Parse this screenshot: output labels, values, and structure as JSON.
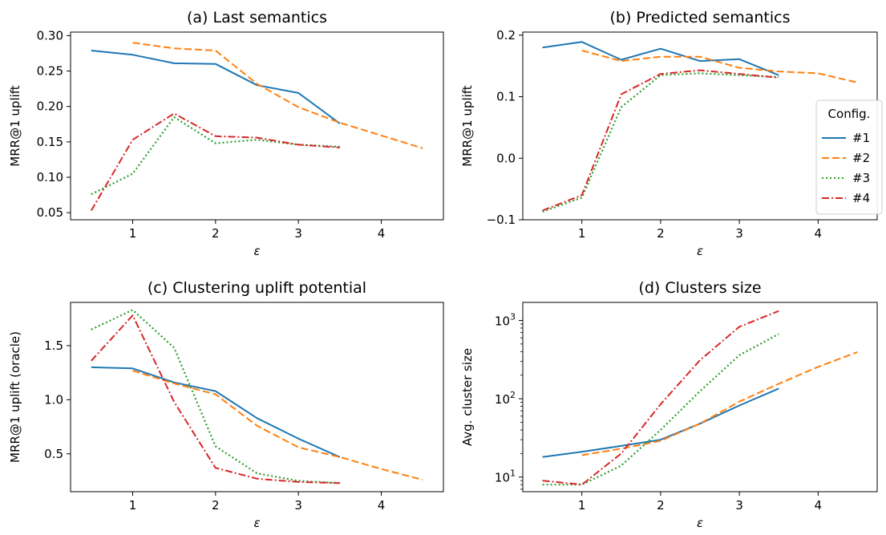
{
  "colors": {
    "s1": "#1f77b4",
    "s2": "#ff7f0e",
    "s3": "#2ca02c",
    "s4": "#d62728"
  },
  "legend": {
    "title": "Config.",
    "entries": [
      "#1",
      "#2",
      "#3",
      "#4"
    ],
    "placement": "center-right of panel (b)"
  },
  "chart_data": [
    {
      "type": "line",
      "title": "(a) Last semantics",
      "xlabel": "ε",
      "ylabel": "MRR@1 uplift",
      "xlim": [
        0.25,
        4.75
      ],
      "ylim": [
        0.04,
        0.305
      ],
      "yscale": "linear",
      "xticks": [
        "1",
        "2",
        "3",
        "4"
      ],
      "yticks": [
        "0.05",
        "0.10",
        "0.15",
        "0.20",
        "0.25",
        "0.30"
      ],
      "grid": false,
      "series": [
        {
          "name": "#1",
          "style": "solid",
          "x": [
            0.5,
            1,
            1.5,
            2,
            2.5,
            3,
            3.5
          ],
          "y": [
            0.279,
            0.273,
            0.261,
            0.26,
            0.23,
            0.219,
            0.176
          ]
        },
        {
          "name": "#2",
          "style": "dashed",
          "x": [
            1,
            1.5,
            2,
            2.5,
            3,
            3.5,
            4,
            4.5
          ],
          "y": [
            0.29,
            0.282,
            0.279,
            0.232,
            0.199,
            0.177,
            0.159,
            0.141
          ]
        },
        {
          "name": "#3",
          "style": "dotted",
          "x": [
            0.5,
            1,
            1.5,
            2,
            2.5,
            3,
            3.5
          ],
          "y": [
            0.076,
            0.105,
            0.185,
            0.148,
            0.153,
            0.146,
            0.143
          ]
        },
        {
          "name": "#4",
          "style": "dashdot",
          "x": [
            0.5,
            1,
            1.5,
            2,
            2.5,
            3,
            3.5
          ],
          "y": [
            0.053,
            0.153,
            0.19,
            0.158,
            0.156,
            0.146,
            0.142
          ]
        }
      ]
    },
    {
      "type": "line",
      "title": "(b) Predicted semantics",
      "xlabel": "ε",
      "ylabel": "MRR@1 uplift",
      "xlim": [
        0.25,
        4.75
      ],
      "ylim": [
        -0.1,
        0.205
      ],
      "yscale": "linear",
      "xticks": [
        "1",
        "2",
        "3",
        "4"
      ],
      "yticks": [
        "−0.1",
        "0.0",
        "0.1",
        "0.2"
      ],
      "grid": false,
      "series": [
        {
          "name": "#1",
          "style": "solid",
          "x": [
            0.5,
            1,
            1.5,
            2,
            2.5,
            3,
            3.5
          ],
          "y": [
            0.18,
            0.189,
            0.16,
            0.178,
            0.158,
            0.161,
            0.135
          ]
        },
        {
          "name": "#2",
          "style": "dashed",
          "x": [
            1,
            1.5,
            2,
            2.5,
            3,
            3.5,
            4,
            4.5
          ],
          "y": [
            0.175,
            0.158,
            0.165,
            0.165,
            0.147,
            0.141,
            0.138,
            0.123
          ]
        },
        {
          "name": "#3",
          "style": "dotted",
          "x": [
            0.5,
            1,
            1.5,
            2,
            2.5,
            3,
            3.5
          ],
          "y": [
            -0.087,
            -0.064,
            0.083,
            0.135,
            0.138,
            0.135,
            0.132
          ]
        },
        {
          "name": "#4",
          "style": "dashdot",
          "x": [
            0.5,
            1,
            1.5,
            2,
            2.5,
            3,
            3.5
          ],
          "y": [
            -0.085,
            -0.06,
            0.104,
            0.137,
            0.143,
            0.137,
            0.131
          ]
        }
      ]
    },
    {
      "type": "line",
      "title": "(c) Clustering uplift potential",
      "xlabel": "ε",
      "ylabel": "MRR@1 uplift (oracle)",
      "xlim": [
        0.25,
        4.75
      ],
      "ylim": [
        0.15,
        1.9
      ],
      "yscale": "linear",
      "xticks": [
        "1",
        "2",
        "3",
        "4"
      ],
      "yticks": [
        "0.5",
        "1.0",
        "1.5"
      ],
      "grid": false,
      "series": [
        {
          "name": "#1",
          "style": "solid",
          "x": [
            0.5,
            1,
            1.5,
            2,
            2.5,
            3,
            3.5
          ],
          "y": [
            1.3,
            1.29,
            1.16,
            1.08,
            0.83,
            0.64,
            0.47
          ]
        },
        {
          "name": "#2",
          "style": "dashed",
          "x": [
            1,
            1.5,
            2,
            2.5,
            3,
            3.5,
            4,
            4.5
          ],
          "y": [
            1.27,
            1.15,
            1.05,
            0.76,
            0.56,
            0.47,
            0.36,
            0.26
          ]
        },
        {
          "name": "#3",
          "style": "dotted",
          "x": [
            0.5,
            1,
            1.5,
            2,
            2.5,
            3,
            3.5
          ],
          "y": [
            1.65,
            1.83,
            1.48,
            0.57,
            0.32,
            0.25,
            0.23
          ]
        },
        {
          "name": "#4",
          "style": "dashdot",
          "x": [
            0.5,
            1,
            1.5,
            2,
            2.5,
            3,
            3.5
          ],
          "y": [
            1.36,
            1.78,
            0.98,
            0.37,
            0.27,
            0.24,
            0.23
          ]
        }
      ]
    },
    {
      "type": "line",
      "title": "(d) Clusters size",
      "xlabel": "ε",
      "ylabel": "Avg. cluster size",
      "xlim": [
        0.25,
        4.75
      ],
      "ylim": [
        6.5,
        1700
      ],
      "yscale": "log",
      "xticks": [
        "1",
        "2",
        "3",
        "4"
      ],
      "yticks": [
        {
          "value": 10,
          "base": "10",
          "exp": "1"
        },
        {
          "value": 100,
          "base": "10",
          "exp": "2"
        },
        {
          "value": 1000,
          "base": "10",
          "exp": "3"
        }
      ],
      "grid": false,
      "series": [
        {
          "name": "#1",
          "style": "solid",
          "x": [
            0.5,
            1,
            1.5,
            2,
            2.5,
            3,
            3.5
          ],
          "y": [
            18,
            21,
            25,
            30,
            48,
            82,
            135
          ]
        },
        {
          "name": "#2",
          "style": "dashed",
          "x": [
            1,
            1.5,
            2,
            2.5,
            3,
            3.5,
            4,
            4.5
          ],
          "y": [
            19,
            23,
            29,
            48,
            92,
            155,
            255,
            395
          ]
        },
        {
          "name": "#3",
          "style": "dotted",
          "x": [
            0.5,
            1,
            1.5,
            2,
            2.5,
            3,
            3.5
          ],
          "y": [
            8,
            8,
            14,
            40,
            125,
            360,
            670
          ]
        },
        {
          "name": "#4",
          "style": "dashdot",
          "x": [
            0.5,
            1,
            1.5,
            2,
            2.5,
            3,
            3.5
          ],
          "y": [
            9,
            8,
            20,
            85,
            310,
            830,
            1320
          ]
        }
      ]
    }
  ]
}
